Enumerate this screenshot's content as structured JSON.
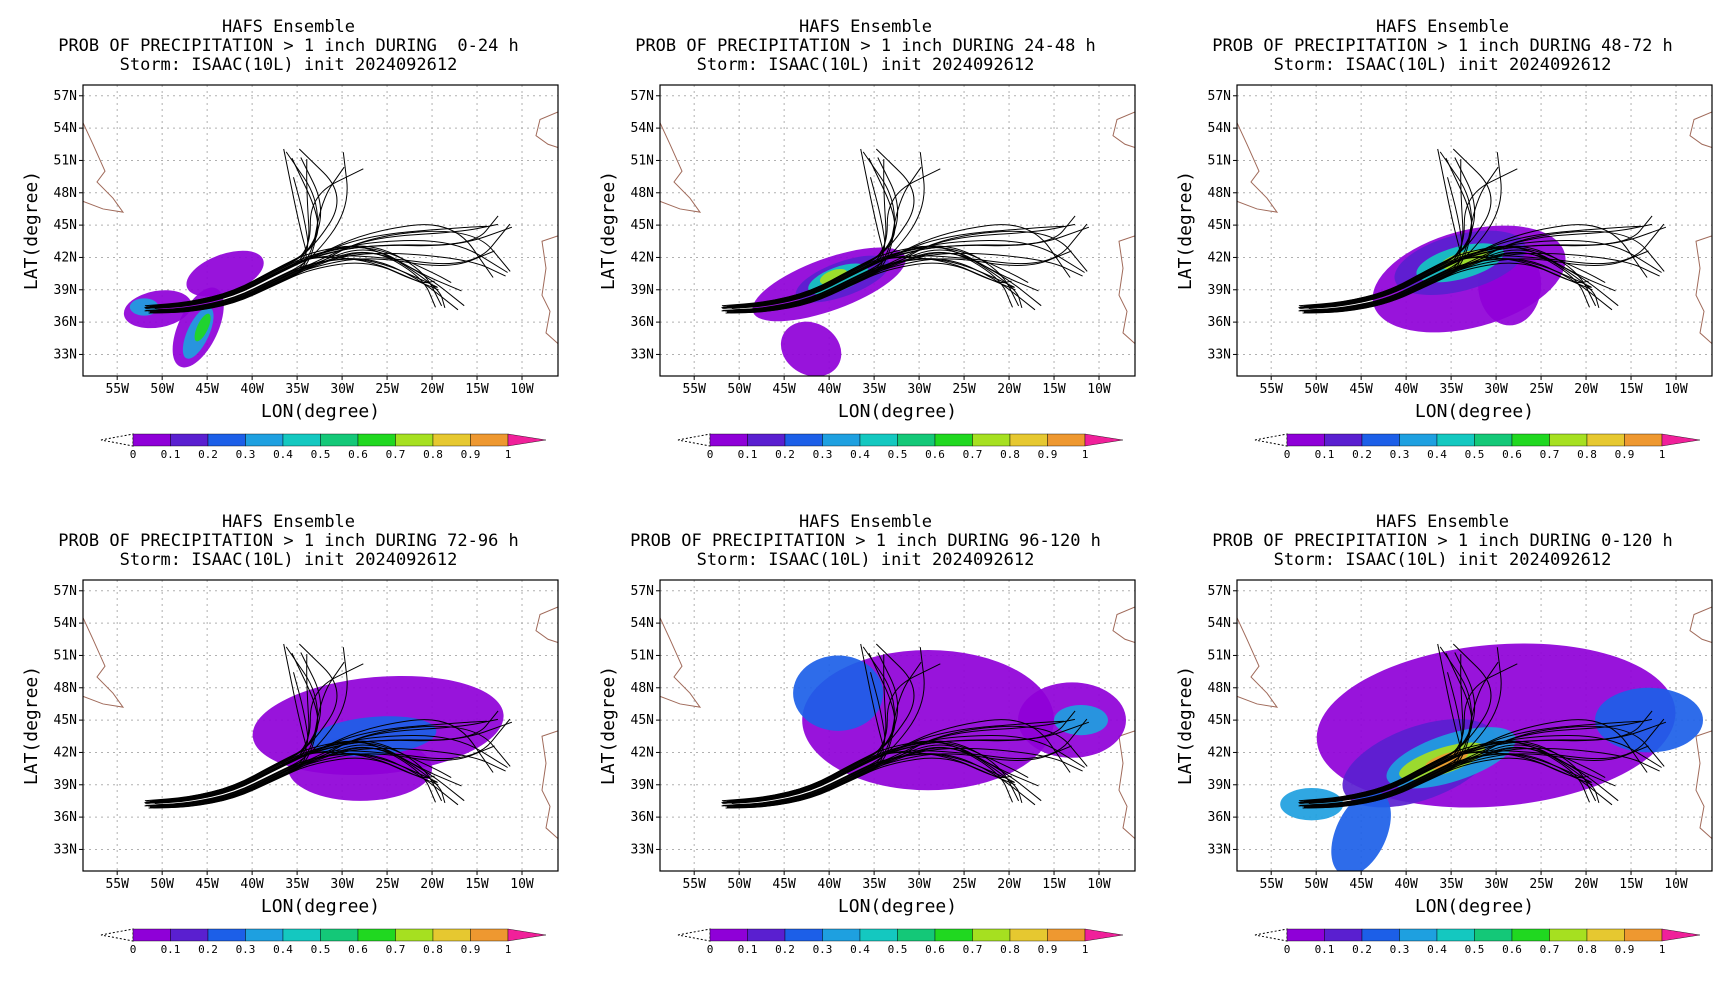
{
  "common": {
    "lat_ticks": [
      "57N",
      "54N",
      "51N",
      "48N",
      "45N",
      "42N",
      "39N",
      "36N",
      "33N"
    ],
    "lon_ticks": [
      "55W",
      "50W",
      "45W",
      "40W",
      "35W",
      "30W",
      "25W",
      "20W",
      "15W",
      "10W"
    ],
    "xlabel": "LON(degree)",
    "ylabel": "LAT(degree)",
    "colorbar_labels": [
      "0",
      "0.1",
      "0.2",
      "0.3",
      "0.4",
      "0.5",
      "0.6",
      "0.7",
      "0.8",
      "0.9",
      "1"
    ],
    "colorbar_colors": [
      "#8f00d8",
      "#5a1fd0",
      "#1c5fe8",
      "#1ea0e0",
      "#14c8c0",
      "#14c878",
      "#20d820",
      "#a6e020",
      "#e6c830",
      "#ee9830",
      "#f04838"
    ],
    "colorbar_overflow_color": "#f0209a"
  },
  "panels": [
    {
      "line1": "HAFS Ensemble",
      "line2": "PROB OF PRECIPITATION > 1 inch DURING  0-24 h",
      "line3": "Storm: ISAAC(10L) init 2024092612"
    },
    {
      "line1": "HAFS Ensemble",
      "line2": "PROB OF PRECIPITATION > 1 inch DURING 24-48 h",
      "line3": "Storm: ISAAC(10L) init 2024092612"
    },
    {
      "line1": "HAFS Ensemble",
      "line2": "PROB OF PRECIPITATION > 1 inch DURING 48-72 h",
      "line3": "Storm: ISAAC(10L) init 2024092612"
    },
    {
      "line1": "HAFS Ensemble",
      "line2": "PROB OF PRECIPITATION > 1 inch DURING 72-96 h",
      "line3": "Storm: ISAAC(10L) init 2024092612"
    },
    {
      "line1": "HAFS Ensemble",
      "line2": "PROB OF PRECIPITATION > 1 inch DURING 96-120 h",
      "line3": "Storm: ISAAC(10L) init 2024092612"
    },
    {
      "line1": "HAFS Ensemble",
      "line2": "PROB OF PRECIPITATION > 1 inch DURING 0-120 h",
      "line3": "Storm: ISAAC(10L) init 2024092612"
    }
  ]
}
